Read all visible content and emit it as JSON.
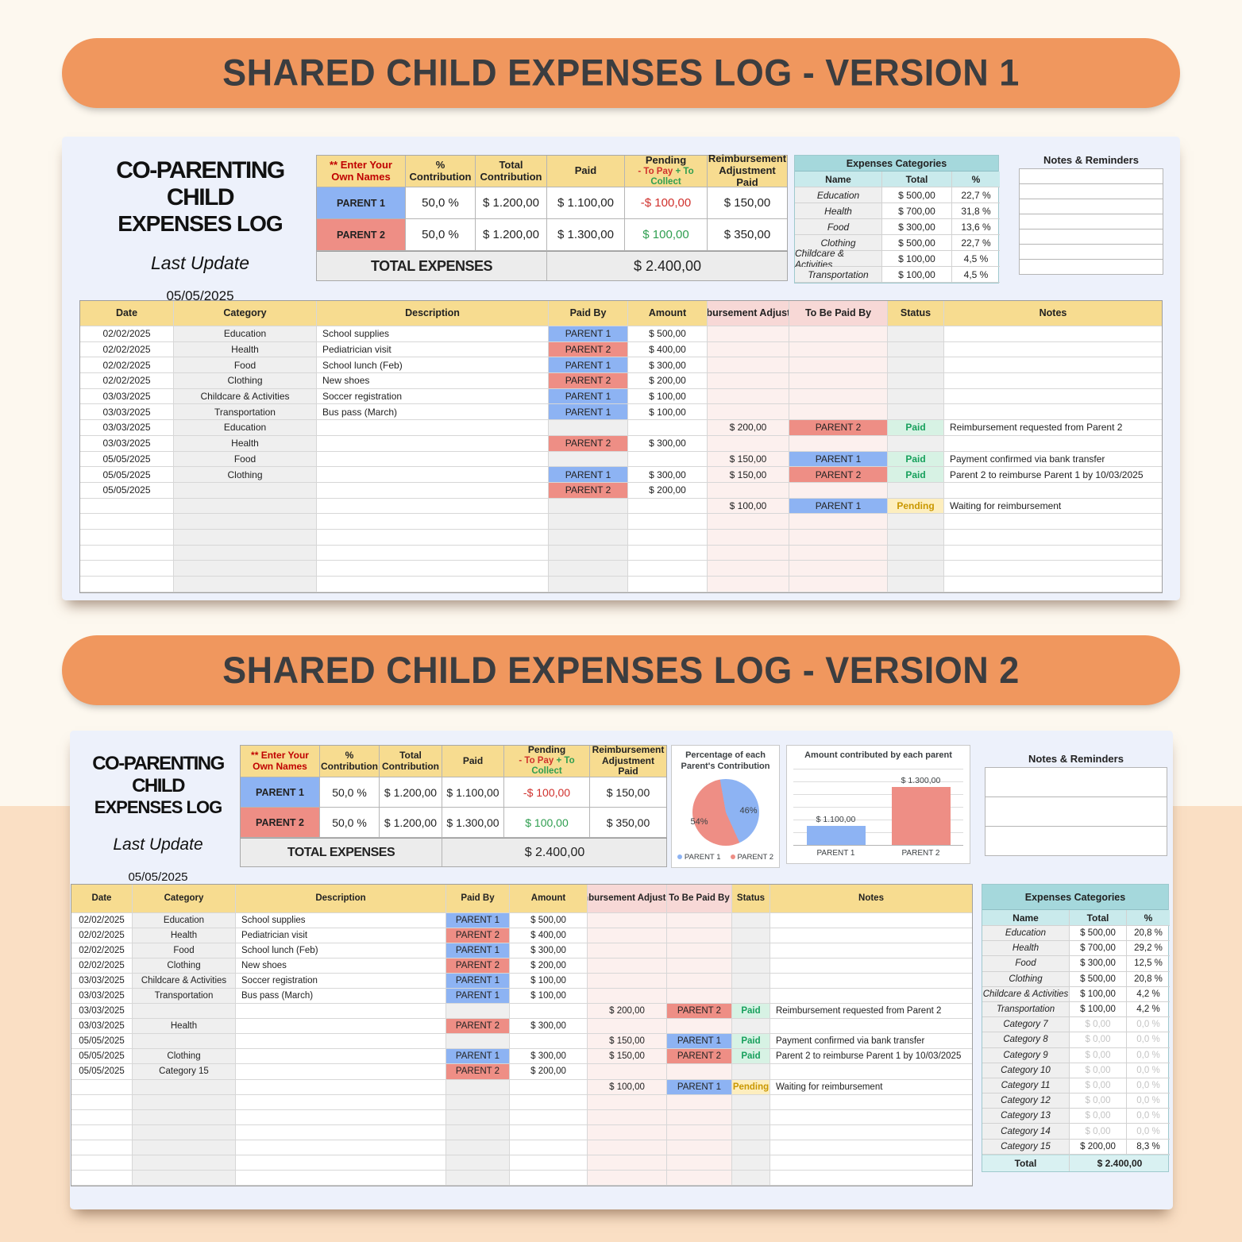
{
  "banners": {
    "v1": "SHARED CHILD EXPENSES LOG - VERSION 1",
    "v2": "SHARED CHILD EXPENSES LOG - VERSION 2"
  },
  "shared": {
    "title_line1": "CO-PARENTING CHILD",
    "title_line2": "EXPENSES LOG",
    "last_update_label": "Last Update",
    "last_update_date": "05/05/2025",
    "notes_title": "Notes & Reminders",
    "summary": {
      "names_note": "** Enter Your Own Names",
      "headers": {
        "contribution": "% Contribution",
        "total_contribution": "Total Contribution",
        "paid": "Paid",
        "pending": "Pending",
        "pending_pay": "- To Pay",
        "pending_collect": "+ To Collect",
        "reimbursement": "Reimbursement Adjustment Paid"
      },
      "rows": [
        {
          "name": "PARENT 1",
          "variant": "parent1",
          "contribution": "50,0 %",
          "total": "$ 1.200,00",
          "paid": "$ 1.100,00",
          "pending": "-$ 100,00",
          "pending_variant": "neg",
          "reimb": "$ 150,00"
        },
        {
          "name": "PARENT 2",
          "variant": "parent2",
          "contribution": "50,0 %",
          "total": "$ 1.200,00",
          "paid": "$ 1.300,00",
          "pending": "$ 100,00",
          "pending_variant": "pos",
          "reimb": "$ 350,00"
        }
      ],
      "total_label": "TOTAL EXPENSES",
      "total_value": "$ 2.400,00"
    },
    "table_headers": {
      "date": "Date",
      "category": "Category",
      "description": "Description",
      "paid_by": "Paid By",
      "amount": "Amount",
      "reimb": "Reimbursement Adjustment",
      "tbp": "To Be Paid By",
      "status": "Status",
      "notes": "Notes"
    }
  },
  "v1": {
    "notes_rows": [
      "",
      "",
      "",
      "",
      "",
      "",
      ""
    ],
    "categories": {
      "title": "Expenses Categories",
      "headers": [
        "Name",
        "Total",
        "%"
      ],
      "rows": [
        {
          "name": "Education",
          "total": "$ 500,00",
          "pct": "22,7 %"
        },
        {
          "name": "Health",
          "total": "$ 700,00",
          "pct": "31,8 %"
        },
        {
          "name": "Food",
          "total": "$ 300,00",
          "pct": "13,6 %"
        },
        {
          "name": "Clothing",
          "total": "$ 500,00",
          "pct": "22,7 %"
        },
        {
          "name": "Childcare & Activities",
          "total": "$ 100,00",
          "pct": "4,5 %"
        },
        {
          "name": "Transportation",
          "total": "$ 100,00",
          "pct": "4,5 %"
        }
      ]
    },
    "rows": [
      {
        "date": "02/02/2025",
        "category": "Education",
        "description": "School supplies",
        "paid_by": "PARENT 1",
        "pv": "parent1",
        "amount": "$ 500,00"
      },
      {
        "date": "02/02/2025",
        "category": "Health",
        "description": "Pediatrician visit",
        "paid_by": "PARENT 2",
        "pv": "parent2",
        "amount": "$ 400,00"
      },
      {
        "date": "02/02/2025",
        "category": "Food",
        "description": "School lunch (Feb)",
        "paid_by": "PARENT 1",
        "pv": "parent1",
        "amount": "$ 300,00"
      },
      {
        "date": "02/02/2025",
        "category": "Clothing",
        "description": "New shoes",
        "paid_by": "PARENT 2",
        "pv": "parent2",
        "amount": "$ 200,00"
      },
      {
        "date": "03/03/2025",
        "category": "Childcare & Activities",
        "description": "Soccer registration",
        "paid_by": "PARENT 1",
        "pv": "parent1",
        "amount": "$ 100,00"
      },
      {
        "date": "03/03/2025",
        "category": "Transportation",
        "description": "Bus pass (March)",
        "paid_by": "PARENT 1",
        "pv": "parent1",
        "amount": "$ 100,00"
      },
      {
        "date": "03/03/2025",
        "category": "Education",
        "reimb": "$ 200,00",
        "tbp": "PARENT 2",
        "tv": "parent2",
        "status": "Paid",
        "sv": "paid",
        "notes": "Reimbursement requested from Parent 2"
      },
      {
        "date": "03/03/2025",
        "category": "Health",
        "paid_by": "PARENT 2",
        "pv": "parent2",
        "amount": "$ 300,00"
      },
      {
        "date": "05/05/2025",
        "category": "Food",
        "reimb": "$ 150,00",
        "tbp": "PARENT 1",
        "tv": "parent1",
        "status": "Paid",
        "sv": "paid",
        "notes": "Payment confirmed via bank transfer"
      },
      {
        "date": "05/05/2025",
        "category": "Clothing",
        "paid_by": "PARENT 1",
        "pv": "parent1",
        "amount": "$ 300,00",
        "reimb": "$ 150,00",
        "tbp": "PARENT 2",
        "tv": "parent2",
        "status": "Paid",
        "sv": "paid",
        "notes": "Parent 2 to reimburse Parent 1 by 10/03/2025"
      },
      {
        "date": "05/05/2025",
        "paid_by": "PARENT 2",
        "pv": "parent2",
        "amount": "$ 200,00"
      },
      {
        "reimb": "$ 100,00",
        "tbp": "PARENT 1",
        "tv": "parent1",
        "status": "Pending",
        "sv": "pending",
        "notes": "Waiting for reimbursement"
      },
      {},
      {},
      {},
      {},
      {}
    ]
  },
  "v2": {
    "notes_rows": [
      "",
      "",
      ""
    ],
    "categories": {
      "title": "Expenses Categories",
      "headers": [
        "Name",
        "Total",
        "%"
      ],
      "rows": [
        {
          "name": "Education",
          "total": "$ 500,00",
          "pct": "20,8 %"
        },
        {
          "name": "Health",
          "total": "$ 700,00",
          "pct": "29,2 %"
        },
        {
          "name": "Food",
          "total": "$ 300,00",
          "pct": "12,5 %"
        },
        {
          "name": "Clothing",
          "total": "$ 500,00",
          "pct": "20,8 %"
        },
        {
          "name": "Childcare & Activities",
          "total": "$ 100,00",
          "pct": "4,2 %"
        },
        {
          "name": "Transportation",
          "total": "$ 100,00",
          "pct": "4,2 %"
        },
        {
          "name": "Category 7",
          "total": "$ 0,00",
          "pct": "0,0 %",
          "v": "empty"
        },
        {
          "name": "Category 8",
          "total": "$ 0,00",
          "pct": "0,0 %",
          "v": "empty"
        },
        {
          "name": "Category 9",
          "total": "$ 0,00",
          "pct": "0,0 %",
          "v": "empty"
        },
        {
          "name": "Category 10",
          "total": "$ 0,00",
          "pct": "0,0 %",
          "v": "empty"
        },
        {
          "name": "Category 11",
          "total": "$ 0,00",
          "pct": "0,0 %",
          "v": "empty"
        },
        {
          "name": "Category 12",
          "total": "$ 0,00",
          "pct": "0,0 %",
          "v": "empty"
        },
        {
          "name": "Category 13",
          "total": "$ 0,00",
          "pct": "0,0 %",
          "v": "empty"
        },
        {
          "name": "Category 14",
          "total": "$ 0,00",
          "pct": "0,0 %",
          "v": "empty"
        },
        {
          "name": "Category 15",
          "total": "$ 200,00",
          "pct": "8,3 %"
        }
      ],
      "total_label": "Total",
      "total_value": "$ 2.400,00"
    },
    "rows": [
      {
        "date": "02/02/2025",
        "category": "Education",
        "description": "School supplies",
        "paid_by": "PARENT 1",
        "pv": "parent1",
        "amount": "$ 500,00"
      },
      {
        "date": "02/02/2025",
        "category": "Health",
        "description": "Pediatrician visit",
        "paid_by": "PARENT 2",
        "pv": "parent2",
        "amount": "$ 400,00"
      },
      {
        "date": "02/02/2025",
        "category": "Food",
        "description": "School lunch (Feb)",
        "paid_by": "PARENT 1",
        "pv": "parent1",
        "amount": "$ 300,00"
      },
      {
        "date": "02/02/2025",
        "category": "Clothing",
        "description": "New shoes",
        "paid_by": "PARENT 2",
        "pv": "parent2",
        "amount": "$ 200,00"
      },
      {
        "date": "03/03/2025",
        "category": "Childcare & Activities",
        "description": "Soccer registration",
        "paid_by": "PARENT 1",
        "pv": "parent1",
        "amount": "$ 100,00"
      },
      {
        "date": "03/03/2025",
        "category": "Transportation",
        "description": "Bus pass (March)",
        "paid_by": "PARENT 1",
        "pv": "parent1",
        "amount": "$ 100,00"
      },
      {
        "date": "03/03/2025",
        "reimb": "$ 200,00",
        "tbp": "PARENT 2",
        "tv": "parent2",
        "status": "Paid",
        "sv": "paid",
        "notes": "Reimbursement requested from Parent 2"
      },
      {
        "date": "03/03/2025",
        "category": "Health",
        "paid_by": "PARENT 2",
        "pv": "parent2",
        "amount": "$ 300,00"
      },
      {
        "date": "05/05/2025",
        "reimb": "$ 150,00",
        "tbp": "PARENT 1",
        "tv": "parent1",
        "status": "Paid",
        "sv": "paid",
        "notes": "Payment confirmed via bank transfer"
      },
      {
        "date": "05/05/2025",
        "category": "Clothing",
        "paid_by": "PARENT 1",
        "pv": "parent1",
        "amount": "$ 300,00",
        "reimb": "$ 150,00",
        "tbp": "PARENT 2",
        "tv": "parent2",
        "status": "Paid",
        "sv": "paid",
        "notes": "Parent 2 to reimburse Parent 1 by 10/03/2025"
      },
      {
        "date": "05/05/2025",
        "category": "Category 15",
        "paid_by": "PARENT 2",
        "pv": "parent2",
        "amount": "$ 200,00"
      },
      {
        "reimb": "$ 100,00",
        "tbp": "PARENT 1",
        "tv": "parent1",
        "status": "Pending",
        "sv": "pending",
        "notes": "Waiting for reimbursement"
      },
      {},
      {},
      {},
      {},
      {},
      {}
    ]
  },
  "chart_data": [
    {
      "type": "pie",
      "title": "Percentage of each Parent's Contribution",
      "labels": [
        "PARENT 1",
        "PARENT 2"
      ],
      "values": [
        46,
        54
      ],
      "values_display": [
        "46%",
        "54%"
      ],
      "colors": [
        "#8db3f3",
        "#ee8e85"
      ],
      "rotation": -10,
      "legend_position": "bottom"
    },
    {
      "type": "bar",
      "title": "Amount contributed by each parent",
      "categories": [
        "PARENT 1",
        "PARENT 2"
      ],
      "values": [
        1100,
        1300
      ],
      "value_labels": [
        "$ 1.100,00",
        "$ 1.300,00"
      ],
      "colors": [
        "#8db3f3",
        "#ee8e85"
      ],
      "ylim": [
        1000,
        1400
      ],
      "grid": true
    }
  ]
}
